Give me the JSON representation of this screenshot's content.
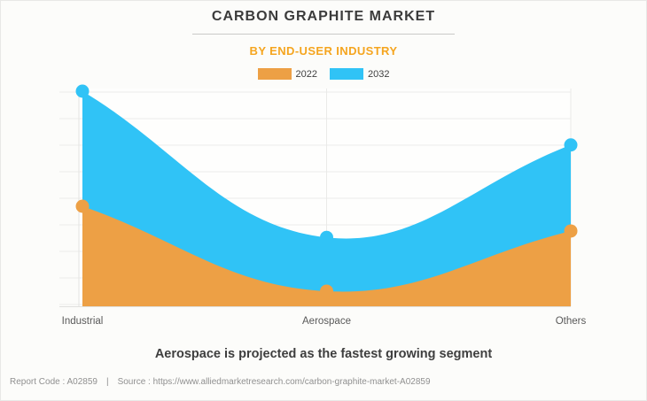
{
  "page": {
    "background": "#fcfcfa",
    "border_color": "#e8e8e6"
  },
  "header": {
    "title": "CARBON GRAPHITE MARKET",
    "subtitle": "BY END-USER INDUSTRY",
    "title_color": "#3b3b3b",
    "subtitle_color": "#f5a51f"
  },
  "legend": {
    "items": [
      {
        "label": "2022",
        "color": "#eda045"
      },
      {
        "label": "2032",
        "color": "#30c3f6"
      }
    ]
  },
  "chart_data": {
    "type": "area",
    "curve": "smooth",
    "categories": [
      "Industrial",
      "Aerospace",
      "Others"
    ],
    "series": [
      {
        "name": "2022",
        "color": "#eda045",
        "values": [
          46.5,
          7,
          35
        ]
      },
      {
        "name": "2032",
        "color": "#30c3f6",
        "values": [
          100,
          32,
          75
        ]
      }
    ],
    "title": "CARBON GRAPHITE MARKET",
    "subtitle": "BY END-USER INDUSTRY",
    "xlabel": "",
    "ylabel": "",
    "ylim": [
      0,
      100
    ],
    "y_axis_labels_visible": false,
    "grid": true,
    "legend_position": "top"
  },
  "note": {
    "text": "Aerospace is projected as the fastest growing segment"
  },
  "footer": {
    "report_code": "Report Code : A02859",
    "separator": "|",
    "source": "Source : https://www.alliedmarketresearch.com/carbon-graphite-market-A02859"
  }
}
